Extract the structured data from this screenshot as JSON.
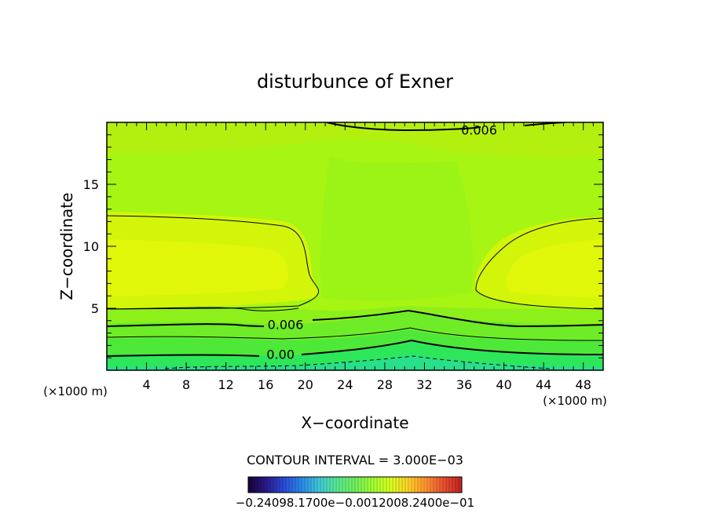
{
  "chart_data": {
    "type": "heatmap",
    "title": "disturbunce of Exner",
    "xlabel": "X−coordinate",
    "ylabel": "Z−coordinate",
    "x_unit": "(×1000 m)",
    "z_unit": "(×1000 m)",
    "xlim": [
      0,
      50
    ],
    "ylim": [
      0,
      20
    ],
    "x_ticks": [
      4,
      8,
      12,
      16,
      20,
      24,
      28,
      32,
      36,
      40,
      44,
      48
    ],
    "y_ticks": [
      5,
      10,
      15
    ],
    "contour_interval_text": "CONTOUR INTERVAL = 3.000E−03",
    "contour_labels": [
      {
        "text": "0.006",
        "x": 37.5,
        "z": 19.4
      },
      {
        "text": "0.006",
        "x": 18.0,
        "z": 3.7
      },
      {
        "text": "0.00",
        "x": 17.5,
        "z": 1.3
      }
    ],
    "colorbar": {
      "labels_text": "−0.24098.1700e−0.0012008.2400e−01",
      "colors": [
        "#1a0033",
        "#2a1a8a",
        "#2a4ad8",
        "#2a8ae8",
        "#40c8d8",
        "#58e890",
        "#70f060",
        "#a0ff30",
        "#d8ff20",
        "#ffd028",
        "#ff9030",
        "#e85030",
        "#c02020"
      ]
    }
  }
}
